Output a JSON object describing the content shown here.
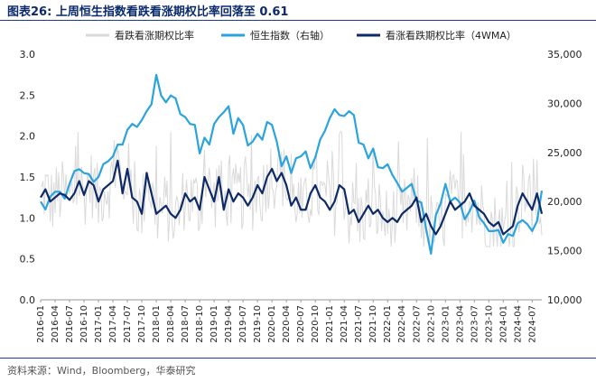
{
  "title": "图表26:  上周恒生指数看跌看涨期权比率回落至 0.61",
  "source": "资料来源：Wind，Bloomberg，华泰研究",
  "chart_data": {
    "type": "line",
    "left_axis": {
      "min": 0,
      "max": 3.0,
      "ticks": [
        "0.0",
        "0.5",
        "1.0",
        "1.5",
        "2.0",
        "2.5",
        "3.0"
      ]
    },
    "right_axis": {
      "min": 10000,
      "max": 35000,
      "ticks": [
        "10,000",
        "15,000",
        "20,000",
        "25,000",
        "30,000",
        "35,000"
      ]
    },
    "x_start": "2016-01",
    "x_end": "2024-09",
    "x_labels": [
      "2016-01",
      "2016-04",
      "2016-07",
      "2016-10",
      "2017-01",
      "2017-04",
      "2017-07",
      "2017-10",
      "2018-01",
      "2018-04",
      "2018-07",
      "2018-10",
      "2019-01",
      "2019-04",
      "2019-07",
      "2019-10",
      "2020-01",
      "2020-04",
      "2020-07",
      "2020-10",
      "2021-01",
      "2021-04",
      "2021-07",
      "2021-10",
      "2022-01",
      "2022-04",
      "2022-07",
      "2022-10",
      "2023-01",
      "2023-04",
      "2023-07",
      "2023-10",
      "2024-01",
      "2024-04",
      "2024-07"
    ],
    "legend": [
      {
        "name": "看跌看涨期权比率",
        "color": "#d9d9d9"
      },
      {
        "name": "恒生指数（右轴）",
        "color": "#2aa3de"
      },
      {
        "name": "看涨看跌期权比率（4WMA）",
        "color": "#0e2a66"
      }
    ],
    "hsi_monthly": {
      "axis": "right",
      "values": [
        20000,
        19200,
        20500,
        21000,
        21000,
        20300,
        21800,
        23100,
        23300,
        22900,
        22800,
        22000,
        22500,
        23800,
        24100,
        24600,
        25800,
        25800,
        27300,
        27900,
        27600,
        28300,
        29200,
        29900,
        32900,
        30800,
        30100,
        30800,
        30500,
        28900,
        28600,
        27900,
        27800,
        24900,
        26500,
        25800,
        27900,
        28600,
        29100,
        29700,
        26900,
        28500,
        27800,
        25700,
        26100,
        26900,
        26300,
        28100,
        27800,
        26100,
        23600,
        24600,
        22900,
        24400,
        24600,
        25100,
        23400,
        24500,
        26300,
        27200,
        28500,
        29400,
        28800,
        28700,
        29200,
        28800,
        26000,
        25800,
        24400,
        25400,
        23500,
        23400,
        23800,
        22700,
        21900,
        21000,
        21400,
        21800,
        20100,
        19900,
        17200,
        14700,
        18600,
        19800,
        21800,
        20000,
        20400,
        19900,
        18200,
        19000,
        20100,
        18400,
        17800,
        17000,
        17000,
        17100,
        15800,
        16700,
        16500,
        17800,
        18100,
        17700,
        17000,
        18000,
        21100
      ]
    },
    "pcr_4wma_monthly": {
      "axis": "left",
      "values": [
        1.25,
        1.35,
        1.2,
        1.25,
        1.3,
        1.28,
        1.22,
        1.3,
        1.45,
        1.28,
        1.45,
        1.4,
        1.2,
        1.35,
        1.4,
        1.45,
        1.7,
        1.3,
        1.6,
        1.25,
        1.2,
        1.05,
        1.55,
        1.3,
        1.05,
        1.1,
        1.15,
        1.05,
        1.0,
        1.1,
        1.3,
        1.2,
        1.25,
        1.1,
        1.5,
        1.35,
        1.2,
        1.5,
        1.1,
        1.35,
        1.2,
        1.3,
        1.25,
        1.15,
        1.25,
        1.4,
        1.3,
        1.5,
        1.6,
        1.45,
        1.55,
        1.4,
        1.15,
        1.25,
        1.1,
        1.1,
        1.3,
        1.4,
        1.25,
        1.2,
        1.1,
        1.2,
        1.4,
        1.35,
        1.05,
        1.1,
        0.95,
        1.05,
        1.15,
        1.05,
        1.1,
        1.0,
        0.95,
        1.0,
        0.95,
        1.05,
        1.1,
        1.15,
        1.25,
        0.95,
        1.05,
        0.9,
        0.8,
        0.9,
        1.05,
        1.2,
        1.1,
        1.15,
        1.2,
        1.3,
        1.15,
        1.1,
        1.05,
        0.95,
        0.9,
        0.95,
        0.8,
        0.85,
        0.9,
        1.15,
        1.3,
        1.2,
        1.1,
        1.3,
        1.05
      ]
    }
  }
}
